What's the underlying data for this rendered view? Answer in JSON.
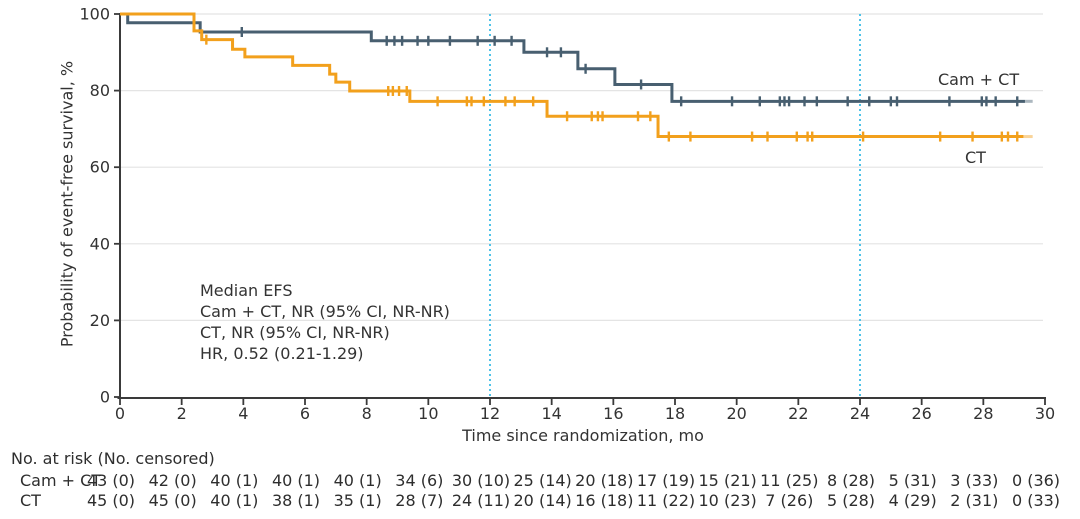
{
  "chart_data": {
    "type": "line",
    "subtype": "kaplan-meier-step",
    "title": "",
    "xlabel": "Time since randomization, mo",
    "ylabel": "Probability of event-free survival, %",
    "xlim": [
      0,
      30
    ],
    "ylim": [
      0,
      100
    ],
    "x_ticks": [
      0,
      2,
      4,
      6,
      8,
      10,
      12,
      14,
      16,
      18,
      20,
      22,
      24,
      26,
      28,
      30
    ],
    "y_ticks": [
      0,
      20,
      40,
      60,
      80,
      100
    ],
    "grid": true,
    "reference_lines_x": [
      12,
      24
    ],
    "series": [
      {
        "name": "Cam+CT",
        "display_name": "Cam + CT",
        "color": "#485F70",
        "steps": [
          [
            0,
            100
          ],
          [
            0.25,
            97.7
          ],
          [
            2.6,
            95.3
          ],
          [
            8.15,
            93
          ],
          [
            13.1,
            90
          ],
          [
            14.85,
            85.7
          ],
          [
            16.05,
            81.6
          ],
          [
            17.9,
            77.2
          ]
        ],
        "end_x": 29.35,
        "tail_end_x": 29.6,
        "censors": [
          [
            3.95,
            95.3
          ],
          [
            8.65,
            93
          ],
          [
            8.9,
            93
          ],
          [
            9.15,
            93
          ],
          [
            9.65,
            93
          ],
          [
            10.0,
            93
          ],
          [
            10.7,
            93
          ],
          [
            11.6,
            93
          ],
          [
            12.15,
            93
          ],
          [
            12.7,
            93
          ],
          [
            13.85,
            90
          ],
          [
            14.3,
            90
          ],
          [
            15.1,
            85.7
          ],
          [
            16.9,
            81.6
          ],
          [
            18.2,
            77.2
          ],
          [
            19.85,
            77.2
          ],
          [
            20.75,
            77.2
          ],
          [
            21.4,
            77.2
          ],
          [
            21.55,
            77.2
          ],
          [
            21.7,
            77.2
          ],
          [
            22.2,
            77.2
          ],
          [
            22.6,
            77.2
          ],
          [
            23.6,
            77.2
          ],
          [
            24.3,
            77.2
          ],
          [
            25.0,
            77.2
          ],
          [
            25.2,
            77.2
          ],
          [
            26.9,
            77.2
          ],
          [
            27.95,
            77.2
          ],
          [
            28.1,
            77.2
          ],
          [
            28.4,
            77.2
          ],
          [
            29.1,
            77.2
          ]
        ]
      },
      {
        "name": "CT",
        "display_name": "CT",
        "color": "#F2A01C",
        "steps": [
          [
            0,
            100
          ],
          [
            2.4,
            95.6
          ],
          [
            2.65,
            93.3
          ],
          [
            3.65,
            90.8
          ],
          [
            4.05,
            88.8
          ],
          [
            5.6,
            86.6
          ],
          [
            6.8,
            84.3
          ],
          [
            7.0,
            82.2
          ],
          [
            7.45,
            79.9
          ],
          [
            9.4,
            77.2
          ],
          [
            13.85,
            73.3
          ],
          [
            17.45,
            68
          ]
        ],
        "end_x": 29.3,
        "tail_end_x": 29.6,
        "censors": [
          [
            2.8,
            93.3
          ],
          [
            8.7,
            79.9
          ],
          [
            8.85,
            79.9
          ],
          [
            9.05,
            79.9
          ],
          [
            9.3,
            79.9
          ],
          [
            10.3,
            77.2
          ],
          [
            11.25,
            77.2
          ],
          [
            11.4,
            77.2
          ],
          [
            11.8,
            77.2
          ],
          [
            12.5,
            77.2
          ],
          [
            12.8,
            77.2
          ],
          [
            13.4,
            77.2
          ],
          [
            14.5,
            73.3
          ],
          [
            15.3,
            73.3
          ],
          [
            15.5,
            73.3
          ],
          [
            15.65,
            73.3
          ],
          [
            16.8,
            73.3
          ],
          [
            17.2,
            73.3
          ],
          [
            17.8,
            68
          ],
          [
            18.5,
            68
          ],
          [
            20.5,
            68
          ],
          [
            21.0,
            68
          ],
          [
            21.95,
            68
          ],
          [
            22.3,
            68
          ],
          [
            22.45,
            68
          ],
          [
            24.1,
            68
          ],
          [
            26.6,
            68
          ],
          [
            27.65,
            68
          ],
          [
            28.6,
            68
          ],
          [
            28.8,
            68
          ],
          [
            29.1,
            68
          ]
        ]
      }
    ],
    "annotation": {
      "lines": [
        "Median EFS",
        "Cam + CT, NR (95% CI, NR-NR)",
        "CT, NR (95% CI, NR-NR)",
        "HR, 0.52 (0.21-1.29)"
      ]
    },
    "risk_table": {
      "header": "No. at risk (No. censored)",
      "months": [
        0,
        2,
        4,
        6,
        8,
        10,
        12,
        14,
        16,
        18,
        20,
        22,
        24,
        26,
        28,
        30
      ],
      "rows": [
        {
          "label": "Cam + CT",
          "values": [
            "43 (0)",
            "42 (0)",
            "40 (1)",
            "40 (1)",
            "40 (1)",
            "34 (6)",
            "30 (10)",
            "25 (14)",
            "20 (18)",
            "17 (19)",
            "15 (21)",
            "11 (25)",
            "8 (28)",
            "5 (31)",
            "3 (33)",
            "0 (36)"
          ]
        },
        {
          "label": "CT",
          "values": [
            "45 (0)",
            "45 (0)",
            "40 (1)",
            "38 (1)",
            "35 (1)",
            "28 (7)",
            "24 (11)",
            "20 (14)",
            "16 (18)",
            "11 (22)",
            "10 (23)",
            "7 (26)",
            "5 (28)",
            "4 (29)",
            "2 (31)",
            "0 (33)"
          ]
        }
      ]
    },
    "colors": {
      "reference_line": "#4FC3E9",
      "grid": "#E4E4E4",
      "axis": "#3A3A3A",
      "text": "#333333"
    }
  }
}
